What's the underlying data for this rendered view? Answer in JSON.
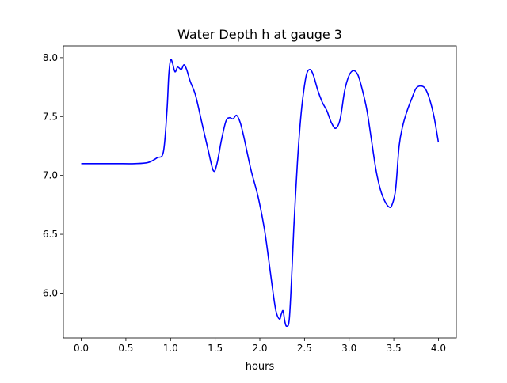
{
  "chart_data": {
    "type": "line",
    "title": "Water Depth h at gauge 3",
    "xlabel": "hours",
    "ylabel": "",
    "xlim": [
      -0.2,
      4.2
    ],
    "ylim": [
      5.62,
      8.1
    ],
    "xticks": [
      0.0,
      0.5,
      1.0,
      1.5,
      2.0,
      2.5,
      3.0,
      3.5,
      4.0
    ],
    "xtick_labels": [
      "0.0",
      "0.5",
      "1.0",
      "1.5",
      "2.0",
      "2.5",
      "3.0",
      "3.5",
      "4.0"
    ],
    "yticks": [
      6.0,
      6.5,
      7.0,
      7.5,
      8.0
    ],
    "ytick_labels": [
      "6.0",
      "6.5",
      "7.0",
      "7.5",
      "8.0"
    ],
    "grid": false,
    "legend": "none",
    "series": [
      {
        "color": "#0000ff",
        "x": [
          0.0,
          0.2,
          0.4,
          0.6,
          0.75,
          0.85,
          0.92,
          0.96,
          0.98,
          1.0,
          1.02,
          1.05,
          1.08,
          1.12,
          1.15,
          1.18,
          1.22,
          1.28,
          1.35,
          1.42,
          1.48,
          1.52,
          1.57,
          1.62,
          1.66,
          1.7,
          1.74,
          1.78,
          1.82,
          1.9,
          1.98,
          2.05,
          2.1,
          2.14,
          2.18,
          2.22,
          2.24,
          2.26,
          2.28,
          2.3,
          2.33,
          2.36,
          2.38,
          2.42,
          2.45,
          2.48,
          2.52,
          2.56,
          2.6,
          2.65,
          2.7,
          2.75,
          2.8,
          2.85,
          2.9,
          2.95,
          3.0,
          3.05,
          3.1,
          3.15,
          3.2,
          3.25,
          3.3,
          3.35,
          3.4,
          3.45,
          3.48,
          3.52,
          3.56,
          3.6,
          3.65,
          3.7,
          3.75,
          3.8,
          3.85,
          3.9,
          3.95,
          4.0
        ],
        "y": [
          7.1,
          7.1,
          7.1,
          7.1,
          7.11,
          7.15,
          7.2,
          7.55,
          7.85,
          7.98,
          7.96,
          7.88,
          7.92,
          7.9,
          7.94,
          7.9,
          7.8,
          7.68,
          7.45,
          7.22,
          7.04,
          7.1,
          7.3,
          7.46,
          7.49,
          7.48,
          7.51,
          7.45,
          7.33,
          7.05,
          6.82,
          6.55,
          6.28,
          6.05,
          5.85,
          5.78,
          5.82,
          5.85,
          5.76,
          5.72,
          5.78,
          6.2,
          6.55,
          7.1,
          7.42,
          7.65,
          7.85,
          7.9,
          7.85,
          7.72,
          7.62,
          7.55,
          7.45,
          7.4,
          7.48,
          7.72,
          7.85,
          7.89,
          7.85,
          7.72,
          7.55,
          7.3,
          7.05,
          6.88,
          6.78,
          6.73,
          6.75,
          6.88,
          7.25,
          7.42,
          7.55,
          7.65,
          7.74,
          7.76,
          7.74,
          7.65,
          7.5,
          7.28
        ]
      }
    ]
  }
}
